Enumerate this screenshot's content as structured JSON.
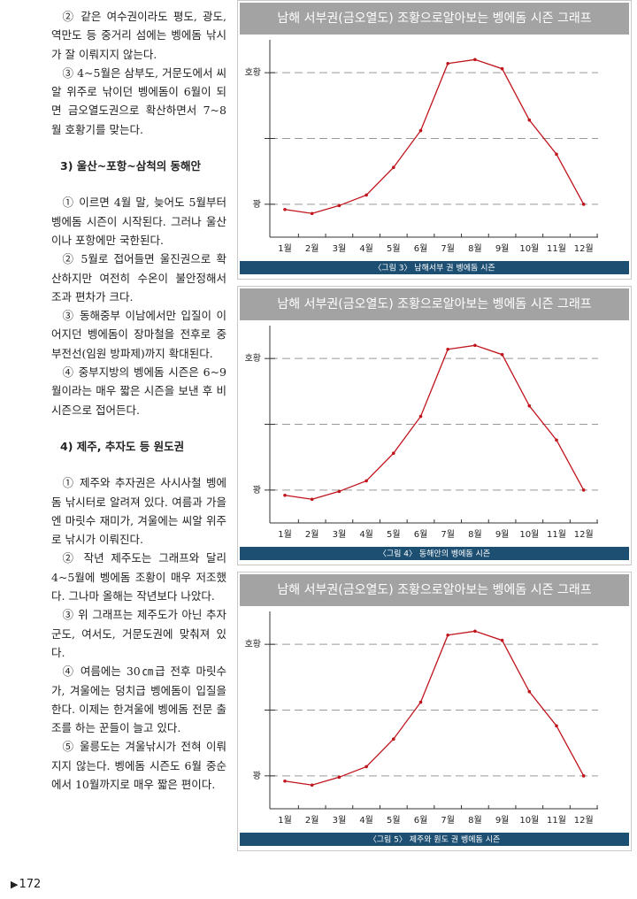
{
  "article": {
    "intro": [
      "② 같은 여수권이라도 평도, 광도, 역만도 등 중거리 섬에는 벵에돔 낚시가 잘 이뤄지지 않는다.",
      "③ 4~5월은 삼부도, 거문도에서 씨알 위주로 낚이던 벵에돔이 6월이 되면 금오열도권으로 확산하면서 7~8월 호황기를 맞는다."
    ],
    "sections": [
      {
        "heading": "3) 울산~포항~삼척의 동해안",
        "paragraphs": [
          "① 이르면 4월 말, 늦어도 5월부터 벵에돔 시즌이 시작된다. 그러나 울산이나 포항에만 국한된다.",
          "② 5월로 접어들면 울진권으로 확산하지만 여전히 수온이 불안정해서 조과 편차가 크다.",
          "③ 동해중부 이남에서만 입질이 이어지던 벵에돔이 장마철을 전후로 중부전선(임원 방파제)까지 확대된다.",
          "④ 중부지방의 벵에돔 시즌은 6~9월이라는 매우 짧은 시즌을 보낸 후 비시즌으로 접어든다."
        ]
      },
      {
        "heading": "4) 제주, 추자도 등 원도권",
        "paragraphs": [
          "① 제주와 추자권은 사시사철 벵에돔 낚시터로 알려져 있다. 여름과 가을엔 마릿수 재미가, 겨울에는 씨알 위주로 낚시가 이뤄진다.",
          "② 작년 제주도는 그래프와 달리 4~5월에 벵에돔 조황이 매우 저조했다. 그나마 올해는 작년보다 나았다.",
          "③ 위 그래프는 제주도가 아닌 추자군도, 여서도, 거문도권에 맞춰져 있다.",
          "④ 여름에는 30㎝급 전후 마릿수가, 겨울에는 덩치급 벵에돔이 입질을 한다. 이제는 한겨울에 벵에돔 전문 출조를 하는 꾼들이 늘고 있다.",
          "⑤ 울릉도는 겨울낚시가 전혀 이뤄지지 않는다. 벵에돔 시즌도 6월 중순에서 10월까지로 매우 짧은 편이다."
        ]
      }
    ]
  },
  "page_number": "172",
  "chart_data": [
    {
      "type": "line",
      "title": "남해 서부권(금오열도) 조황으로알아보는 벵에돔 시즌 그래프",
      "caption": "〈그림 3〉 남해서부 권 벵에돔 시즌",
      "categories": [
        "1월",
        "2월",
        "3월",
        "4월",
        "5월",
        "6월",
        "7월",
        "8월",
        "9월",
        "10월",
        "11월",
        "12월"
      ],
      "values": [
        -4,
        -7,
        -1,
        7,
        28,
        56,
        107,
        110,
        103,
        64,
        38,
        0
      ],
      "color": "#c0141c",
      "ylim": [
        -25,
        125
      ],
      "yticks": [
        {
          "value": 0,
          "label": "꽝"
        },
        {
          "value": 50,
          "label": null
        },
        {
          "value": 100,
          "label": "호황"
        }
      ],
      "grid": true
    },
    {
      "type": "line",
      "title": "남해 서부권(금오열도) 조황으로알아보는 벵에돔 시즌 그래프",
      "caption": "〈그림 4〉 동해안의 벵에돔 시즌",
      "categories": [
        "1월",
        "2월",
        "3월",
        "4월",
        "5월",
        "6월",
        "7월",
        "8월",
        "9월",
        "10월",
        "11월",
        "12월"
      ],
      "values": [
        -4,
        -7,
        -1,
        7,
        28,
        56,
        107,
        110,
        103,
        64,
        38,
        0
      ],
      "color": "#c0141c",
      "ylim": [
        -25,
        125
      ],
      "yticks": [
        {
          "value": 0,
          "label": "꽝"
        },
        {
          "value": 50,
          "label": null
        },
        {
          "value": 100,
          "label": "호황"
        }
      ],
      "grid": true
    },
    {
      "type": "line",
      "title": "남해 서부권(금오열도) 조황으로알아보는 벵에돔 시즌 그래프",
      "caption": "〈그림 5〉 제주와 원도 권 벵에돔 시즌",
      "categories": [
        "1월",
        "2월",
        "3월",
        "4월",
        "5월",
        "6월",
        "7월",
        "8월",
        "9월",
        "10월",
        "11월",
        "12월"
      ],
      "values": [
        -4,
        -7,
        -1,
        7,
        28,
        56,
        107,
        110,
        103,
        64,
        38,
        0
      ],
      "color": "#c0141c",
      "ylim": [
        -25,
        125
      ],
      "yticks": [
        {
          "value": 0,
          "label": "꽝"
        },
        {
          "value": 50,
          "label": null
        },
        {
          "value": 100,
          "label": "호황"
        }
      ],
      "grid": true
    }
  ]
}
